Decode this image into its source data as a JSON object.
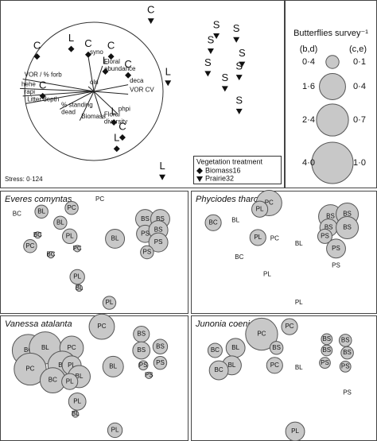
{
  "chart_data": [
    {
      "type": "ordination",
      "xlim": [
        0,
        100
      ],
      "ylim": [
        0,
        100
      ],
      "stress": "Stress: 0·124",
      "legend_title": "Vegetation treatment",
      "series": [
        {
          "name": "Biomass16",
          "symbol": "diamond",
          "color": "#111111",
          "labels": [
            "C",
            "L",
            "C",
            "C",
            "L",
            "C",
            "C",
            "L",
            "C",
            "L"
          ],
          "x": [
            13,
            25,
            31,
            39,
            37,
            45,
            15,
            40,
            43,
            41
          ],
          "y": [
            70,
            74,
            71,
            70,
            62,
            60,
            49,
            35,
            27,
            21
          ]
        },
        {
          "name": "Prairie32",
          "symbol": "triangle-down",
          "color": "#111111",
          "labels": [
            "C",
            "L",
            "L",
            "S",
            "S",
            "S",
            "S",
            "S",
            "S",
            "S",
            "S"
          ],
          "x": [
            53,
            59,
            57,
            76,
            83,
            74,
            85,
            73,
            84,
            79,
            84
          ],
          "y": [
            89,
            56,
            6,
            81,
            79,
            73,
            66,
            61,
            59,
            53,
            41
          ]
        }
      ],
      "vectors": [
        {
          "label": [
            "syno"
          ],
          "x": 31,
          "y": 70
        },
        {
          "label": [
            "Floral",
            "abundance"
          ],
          "x": 36,
          "y": 65
        },
        {
          "label": [
            "olri"
          ],
          "x": 31,
          "y": 54
        },
        {
          "label": [
            "VOR / % forb"
          ],
          "x": 8,
          "y": 58
        },
        {
          "label": [
            "hehe"
          ],
          "x": 7,
          "y": 53
        },
        {
          "label": [
            "rapi"
          ],
          "x": 8,
          "y": 49
        },
        {
          "label": [
            "Litter depth"
          ],
          "x": 9,
          "y": 45
        },
        {
          "label": [
            "% standing",
            "dead"
          ],
          "x": 21,
          "y": 42
        },
        {
          "label": [
            "Biomass"
          ],
          "x": 28,
          "y": 36
        },
        {
          "label": [
            "Floral",
            "diversity"
          ],
          "x": 36,
          "y": 37
        },
        {
          "label": [
            "phpi"
          ],
          "x": 41,
          "y": 40
        },
        {
          "label": [
            "deca"
          ],
          "x": 45,
          "y": 55
        },
        {
          "label": [
            "VOR CV"
          ],
          "x": 45,
          "y": 50
        }
      ]
    },
    {
      "type": "bubble",
      "title": "Everes comyntas",
      "xlim": [
        0,
        100
      ],
      "ylim": [
        0,
        100
      ],
      "color": "#c8c8c8",
      "labels": [
        "PC",
        "BC",
        "BL",
        "PC",
        "BL",
        "PL",
        "BC",
        "PC",
        "BL",
        "BS",
        "BS",
        "PS",
        "BS",
        "PS",
        "PS",
        "BC",
        "PC",
        "PL",
        "BL",
        "PL"
      ],
      "x": [
        53,
        9,
        22,
        38,
        32,
        37,
        20,
        16,
        61,
        77,
        85,
        77,
        84,
        84,
        78,
        27,
        41,
        41,
        42,
        58
      ],
      "y": [
        93,
        81,
        83,
        86,
        74,
        63,
        64,
        55,
        61,
        77,
        77,
        65,
        68,
        58,
        50,
        48,
        53,
        30,
        21,
        9
      ],
      "sizes": [
        0,
        0,
        0.4,
        0.4,
        0.4,
        0.5,
        0.1,
        0.4,
        0.85,
        0.85,
        0.85,
        0.7,
        0.85,
        0.85,
        0.4,
        0.1,
        0.1,
        0.5,
        0.1,
        0.4
      ]
    },
    {
      "type": "bubble",
      "title": "Phyciodes tharos",
      "xlim": [
        0,
        100
      ],
      "ylim": [
        0,
        100
      ],
      "color": "#c8c8c8",
      "labels": [
        "PC",
        "PL",
        "BL",
        "BC",
        "PL",
        "PC",
        "BL",
        "BC",
        "BS",
        "BS",
        "BS",
        "BS",
        "PS",
        "PS",
        "PS",
        "PL",
        "PL"
      ],
      "x": [
        42,
        37,
        24,
        12,
        36,
        45,
        58,
        26,
        75,
        84,
        74,
        84,
        72,
        78,
        78,
        41,
        58
      ],
      "y": [
        90,
        85,
        76,
        74,
        62,
        61,
        57,
        46,
        79,
        81,
        70,
        70,
        63,
        53,
        39,
        32,
        9
      ],
      "sizes": [
        0.38,
        0.15,
        0,
        0.15,
        0.15,
        0,
        0,
        0,
        0.33,
        0.29,
        0.18,
        0.29,
        0.12,
        0.21,
        0,
        0,
        0
      ]
    },
    {
      "type": "bubble",
      "title": "Vanessa atalanta",
      "xlim": [
        0,
        100
      ],
      "ylim": [
        0,
        100
      ],
      "color": "#c8c8c8",
      "labels": [
        "PC",
        "BC",
        "BL",
        "PC",
        "BS",
        "BS",
        "BS",
        "PC",
        "BL",
        "PL",
        "BL",
        "BC",
        "BL",
        "PL",
        "PS",
        "PS",
        "PS",
        "PL",
        "BL",
        "PL"
      ],
      "x": [
        54,
        15,
        24,
        38,
        75,
        75,
        85,
        16,
        33,
        38,
        42,
        28,
        60,
        37,
        85,
        76,
        79,
        41,
        40,
        61
      ],
      "y": [
        91,
        72,
        74,
        74,
        85,
        72,
        75,
        57,
        60,
        60,
        51,
        48,
        59,
        47,
        62,
        60,
        52,
        31,
        21,
        8
      ],
      "sizes": [
        1.5,
        2.4,
        2.4,
        1.3,
        0.6,
        0.7,
        0.5,
        2.4,
        1.9,
        0.85,
        1.15,
        1.5,
        1.0,
        0.6,
        0.4,
        0.2,
        0.1,
        0.7,
        0.1,
        0.5
      ]
    },
    {
      "type": "bubble",
      "title": "Junonia coenia",
      "xlim": [
        0,
        100
      ],
      "ylim": [
        0,
        100
      ],
      "color": "#c8c8c8",
      "labels": [
        "PC",
        "PC",
        "BL",
        "BC",
        "BS",
        "BL",
        "PC",
        "BC",
        "BS",
        "BS",
        "BS",
        "BS",
        "BL",
        "PS",
        "PS",
        "PS",
        "PL"
      ],
      "x": [
        38,
        53,
        24,
        13,
        46,
        22,
        45,
        15,
        73,
        83,
        73,
        84,
        58,
        72,
        83,
        84,
        56
      ],
      "y": [
        85,
        91,
        74,
        72,
        74,
        60,
        60,
        56,
        81,
        80,
        72,
        70,
        58,
        62,
        59,
        38,
        7
      ],
      "sizes": [
        0.6,
        0.15,
        0.21,
        0.12,
        0.1,
        0.21,
        0.15,
        0.21,
        0.07,
        0.09,
        0.07,
        0.09,
        0,
        0.07,
        0.07,
        0,
        0.21
      ]
    }
  ],
  "size_legend": {
    "title": "Butterflies survey⁻¹",
    "columns": [
      "(b,d)",
      "(c,e)"
    ],
    "rows": [
      [
        {
          "value": 0.4,
          "label": "0·4"
        },
        {
          "value": 0.1,
          "label": "0·1"
        }
      ],
      [
        {
          "value": 1.6,
          "label": "1·6"
        },
        {
          "value": 0.4,
          "label": "0·4"
        }
      ],
      [
        {
          "value": 2.4,
          "label": "2·4"
        },
        {
          "value": 0.7,
          "label": "0·7"
        }
      ],
      [
        {
          "value": 4.0,
          "label": "4·0"
        },
        {
          "value": 1.0,
          "label": "1·0"
        }
      ]
    ]
  }
}
